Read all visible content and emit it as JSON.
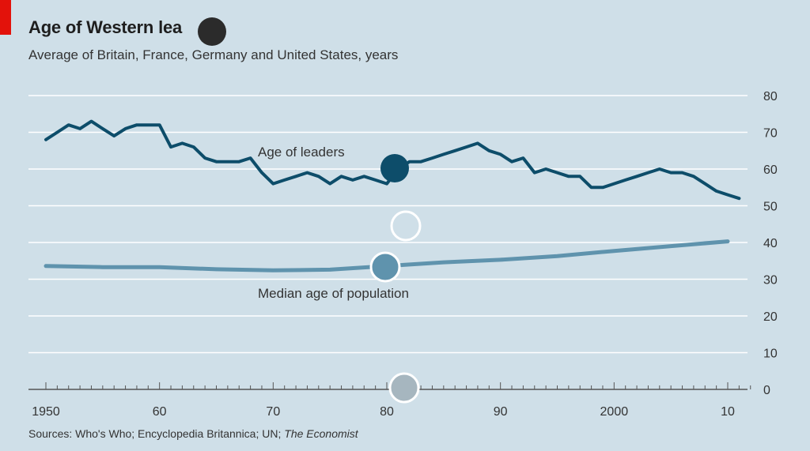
{
  "header": {
    "title": "Age of Western lea    s",
    "subtitle": "Average of Britain, France, Germany and United States, years"
  },
  "footer": {
    "source_prefix": "Sources: Who's Who; Encyclopedia Britannica; UN; ",
    "source_italic": "The Economist"
  },
  "colors": {
    "background": "#cfdfe8",
    "leaders_line": "#0d4d6a",
    "population_line": "#5f93ad",
    "gridline": "#ffffff",
    "brand_tag": "#e3120b"
  },
  "chart_data": {
    "type": "line",
    "title": "Age of Western lea    s",
    "subtitle": "Average of Britain, France, Germany and United States, years",
    "xlim": [
      1950,
      2012
    ],
    "ylim": [
      0,
      80
    ],
    "y_ticks": [
      0,
      10,
      20,
      30,
      40,
      50,
      60,
      70,
      80
    ],
    "x_ticks": [
      {
        "value": 1950,
        "label": "1950"
      },
      {
        "value": 1960,
        "label": "60"
      },
      {
        "value": 1970,
        "label": "70"
      },
      {
        "value": 1980,
        "label": "80"
      },
      {
        "value": 1990,
        "label": "90"
      },
      {
        "value": 2000,
        "label": "2000"
      },
      {
        "value": 2010,
        "label": "10"
      }
    ],
    "grid": true,
    "y_axis_side": "right",
    "series": [
      {
        "name": "Age of leaders",
        "color": "#0d4d6a",
        "x": [
          1950,
          1951,
          1952,
          1953,
          1954,
          1955,
          1956,
          1957,
          1958,
          1959,
          1960,
          1961,
          1962,
          1963,
          1964,
          1965,
          1966,
          1967,
          1968,
          1969,
          1970,
          1971,
          1972,
          1973,
          1974,
          1975,
          1976,
          1977,
          1978,
          1979,
          1980,
          1981,
          1982,
          1983,
          1984,
          1985,
          1986,
          1987,
          1988,
          1989,
          1990,
          1991,
          1992,
          1993,
          1994,
          1995,
          1996,
          1997,
          1998,
          1999,
          2000,
          2001,
          2002,
          2003,
          2004,
          2005,
          2006,
          2007,
          2008,
          2009,
          2010,
          2011
        ],
        "values": [
          68,
          70,
          72,
          71,
          73,
          71,
          69,
          71,
          72,
          72,
          72,
          66,
          67,
          66,
          63,
          62,
          62,
          62,
          63,
          59,
          56,
          57,
          58,
          59,
          58,
          56,
          58,
          57,
          58,
          57,
          56,
          60,
          62,
          62,
          63,
          64,
          65,
          66,
          67,
          65,
          64,
          62,
          63,
          59,
          60,
          59,
          58,
          58,
          55,
          55,
          56,
          57,
          58,
          59,
          60,
          59,
          59,
          58,
          56,
          54,
          53,
          52
        ]
      },
      {
        "name": "Median age of population",
        "color": "#5f93ad",
        "x": [
          1950,
          1955,
          1960,
          1965,
          1970,
          1975,
          1980,
          1985,
          1990,
          1995,
          2000,
          2005,
          2010
        ],
        "values": [
          33.6,
          33.3,
          33.3,
          32.7,
          32.4,
          32.6,
          33.6,
          34.6,
          35.3,
          36.3,
          37.7,
          39.0,
          40.3
        ]
      }
    ]
  }
}
